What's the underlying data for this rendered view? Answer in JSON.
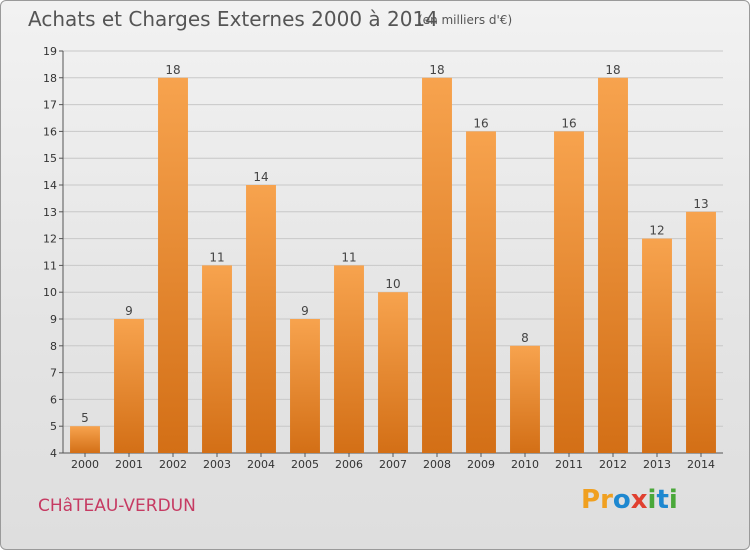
{
  "header": {
    "title": "Achats et Charges Externes 2000 à 2014",
    "unit": "(en milliers d'€)"
  },
  "footer": {
    "commune": "CHâTEAU-VERDUN",
    "logo_text": "Proxiti"
  },
  "colors": {
    "bar_light": "#f7a34e",
    "bar_dark": "#d36f16",
    "grid": "#c8c8c8",
    "commune_text": "#c63a62"
  },
  "chart_data": {
    "type": "bar",
    "title": "Achats et Charges Externes 2000 à 2014",
    "subtitle": "(en milliers d'€)",
    "xlabel": "",
    "ylabel": "",
    "categories": [
      "2000",
      "2001",
      "2002",
      "2003",
      "2004",
      "2005",
      "2006",
      "2007",
      "2008",
      "2009",
      "2010",
      "2011",
      "2012",
      "2013",
      "2014"
    ],
    "values": [
      5,
      9,
      18,
      11,
      14,
      9,
      11,
      10,
      18,
      16,
      8,
      16,
      18,
      12,
      13
    ],
    "ylim": [
      4,
      19
    ],
    "yticks": [
      "4",
      "5",
      "6",
      "7",
      "8",
      "9",
      "10",
      "11",
      "12",
      "13",
      "14",
      "15",
      "16",
      "17",
      "18",
      "19"
    ],
    "grid": true,
    "legend": "none"
  }
}
